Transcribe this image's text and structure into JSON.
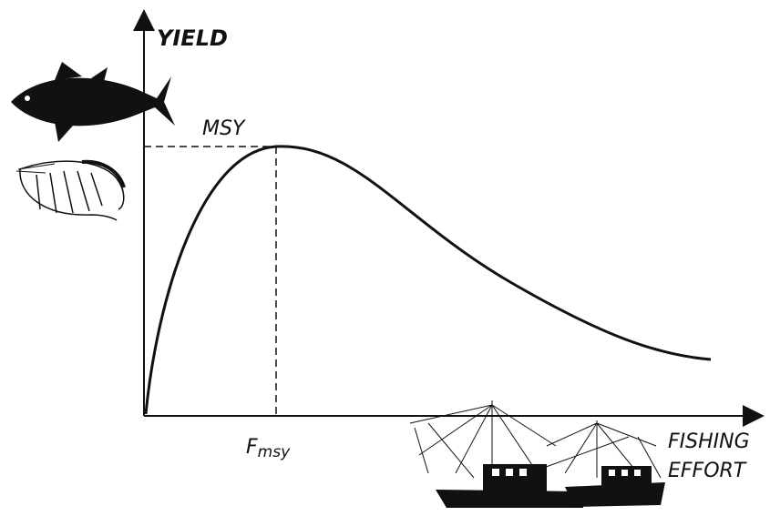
{
  "y_axis_label": "YIELD",
  "peak_label": "MSY",
  "x_marker_label": {
    "main": "F",
    "sub": "msy"
  },
  "x_axis_label": [
    "FISHING",
    "EFFORT"
  ]
}
